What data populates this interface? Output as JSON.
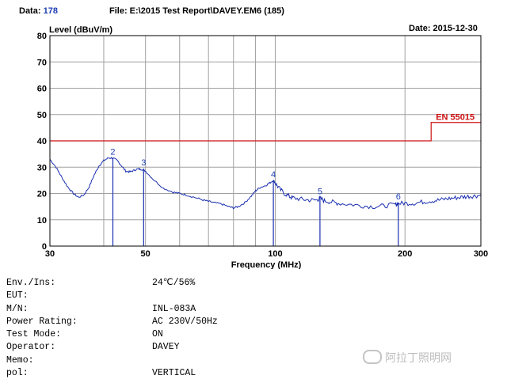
{
  "header": {
    "data_label": "Data:",
    "data_value": "178",
    "file_text": "File: E:\\2015 Test Report\\DAVEY.EM6  (185)",
    "date_text": "Date: 2015-12-30"
  },
  "info_rows": [
    {
      "key": "Env./Ins:",
      "value": "24℃/56%"
    },
    {
      "key": "EUT:",
      "value": ""
    },
    {
      "key": "M/N:",
      "value": "INL-083A"
    },
    {
      "key": "Power Rating:",
      "value": "AC 230V/50Hz"
    },
    {
      "key": "Test Mode:",
      "value": "ON"
    },
    {
      "key": "Operator:",
      "value": "DAVEY"
    },
    {
      "key": "Memo:",
      "value": ""
    },
    {
      "key": "pol:",
      "value": "VERTICAL"
    }
  ],
  "watermark": {
    "text": "阿拉丁照明网",
    "icon": "wechat-bubble-icon"
  },
  "colors": {
    "trace": "#1a2fb0",
    "limit": "#cc1010",
    "grid": "#a0a0a0",
    "label": "#1f3fb4"
  },
  "chart_data": {
    "type": "line",
    "xlabel": "Frequency (MHz)",
    "ylabel": "Level (dBuV/m)",
    "xscale": "log",
    "xlim": [
      30,
      300
    ],
    "ylim": [
      0,
      80
    ],
    "yticks": [
      0,
      10,
      20,
      30,
      40,
      50,
      60,
      70,
      80
    ],
    "xtick_labels": [
      {
        "v": 30,
        "t": "30"
      },
      {
        "v": 50,
        "t": "50"
      },
      {
        "v": 100,
        "t": "100"
      },
      {
        "v": 200,
        "t": "200"
      },
      {
        "v": 300,
        "t": "300"
      }
    ],
    "x_gridlines": [
      30,
      40,
      50,
      60,
      70,
      80,
      90,
      100,
      200,
      300
    ],
    "grid": true,
    "limit_line": {
      "name": "EN 55015",
      "segments": [
        {
          "x": [
            30,
            230
          ],
          "y": 40
        },
        {
          "x": [
            230,
            300
          ],
          "y": 47
        }
      ]
    },
    "markers": [
      {
        "label": "2",
        "x": 42.0,
        "y": 33.5
      },
      {
        "label": "3",
        "x": 49.5,
        "y": 29.5
      },
      {
        "label": "4",
        "x": 99.0,
        "y": 25.0
      },
      {
        "label": "5",
        "x": 127.0,
        "y": 18.5
      },
      {
        "label": "6",
        "x": 193.0,
        "y": 16.5
      }
    ],
    "series": [
      {
        "x": [
          30,
          31,
          32,
          33,
          34,
          35,
          36,
          37,
          38,
          39,
          40,
          41,
          42,
          43,
          44,
          45,
          46,
          47,
          48,
          49,
          50,
          52,
          55,
          58,
          60,
          62,
          65,
          68,
          70,
          72,
          75,
          78,
          80,
          82,
          85,
          88,
          90,
          92,
          95,
          97,
          99,
          100,
          102,
          105,
          108,
          110,
          115,
          120,
          125,
          127,
          130,
          135,
          140,
          150,
          160,
          170,
          180,
          190,
          193,
          200,
          210,
          220,
          230,
          240,
          250,
          260,
          270,
          280,
          290,
          300
        ],
        "y": [
          33,
          30,
          26,
          22.5,
          20,
          18.5,
          19.5,
          22.5,
          27,
          30.5,
          32.5,
          33.5,
          33.5,
          32.5,
          30.5,
          28.5,
          28.2,
          28.8,
          29.3,
          29.2,
          28.5,
          25.5,
          22,
          20.5,
          20,
          19.5,
          18.5,
          17.5,
          17,
          16.5,
          16,
          15,
          14.5,
          15,
          16.5,
          19,
          21,
          22.2,
          23,
          24,
          25,
          24,
          22,
          20,
          18.8,
          18.3,
          17.8,
          17.5,
          17.5,
          18.2,
          17.2,
          16.8,
          16.3,
          15.8,
          15.3,
          15,
          15.3,
          15.8,
          16.2,
          16.3,
          16.3,
          16.8,
          17.2,
          17.5,
          18,
          18.3,
          18.6,
          18.9,
          19.1,
          19.3
        ]
      }
    ]
  }
}
